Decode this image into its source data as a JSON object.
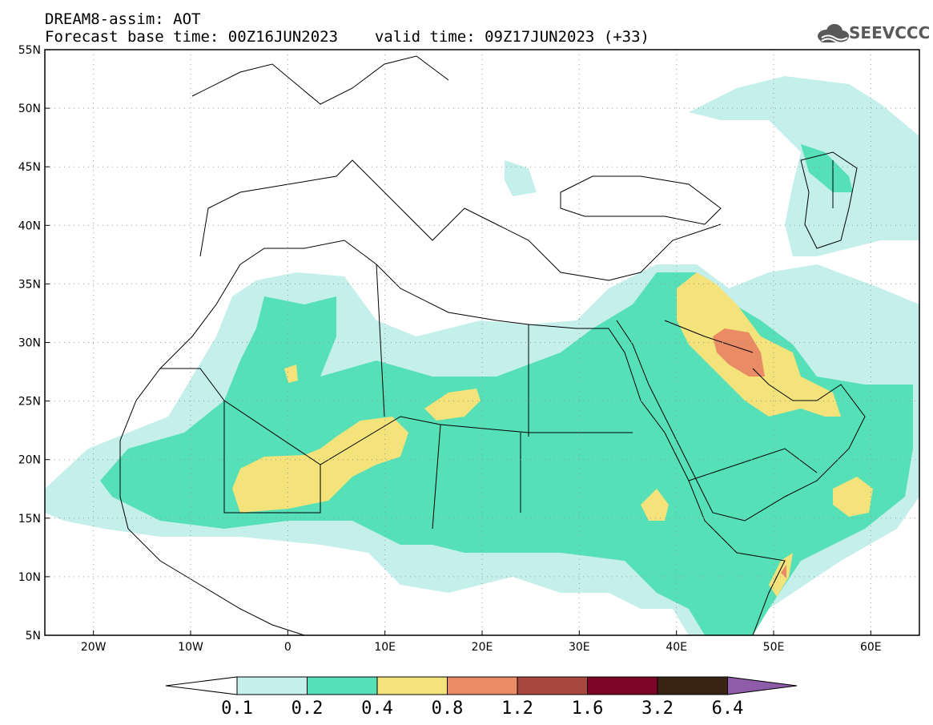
{
  "header": {
    "model_title": "DREAM8-assim: AOT",
    "forecast_base": "Forecast base time: 00Z16JUN2023",
    "valid_time": "valid time: 09Z17JUN2023 (+33)",
    "logo_text": "SEEVCCC"
  },
  "map": {
    "lon_labels": [
      "20W",
      "10W",
      "0",
      "10E",
      "20E",
      "30E",
      "40E",
      "50E",
      "60E"
    ],
    "lat_labels": [
      "55N",
      "50N",
      "45N",
      "40N",
      "35N",
      "30N",
      "25N",
      "20N",
      "15N",
      "10N",
      "5N"
    ],
    "lon_range": [
      -25,
      65
    ],
    "lat_range": [
      5,
      55
    ]
  },
  "colorbar": {
    "labels": [
      "0.1",
      "0.2",
      "0.4",
      "0.8",
      "1.2",
      "1.6",
      "3.2",
      "6.4"
    ],
    "colors": [
      "#c4efea",
      "#55e0b7",
      "#f4e37a",
      "#e98c66",
      "#a8473d",
      "#7d0525",
      "#3a2413",
      "#8e5ca8"
    ]
  }
}
